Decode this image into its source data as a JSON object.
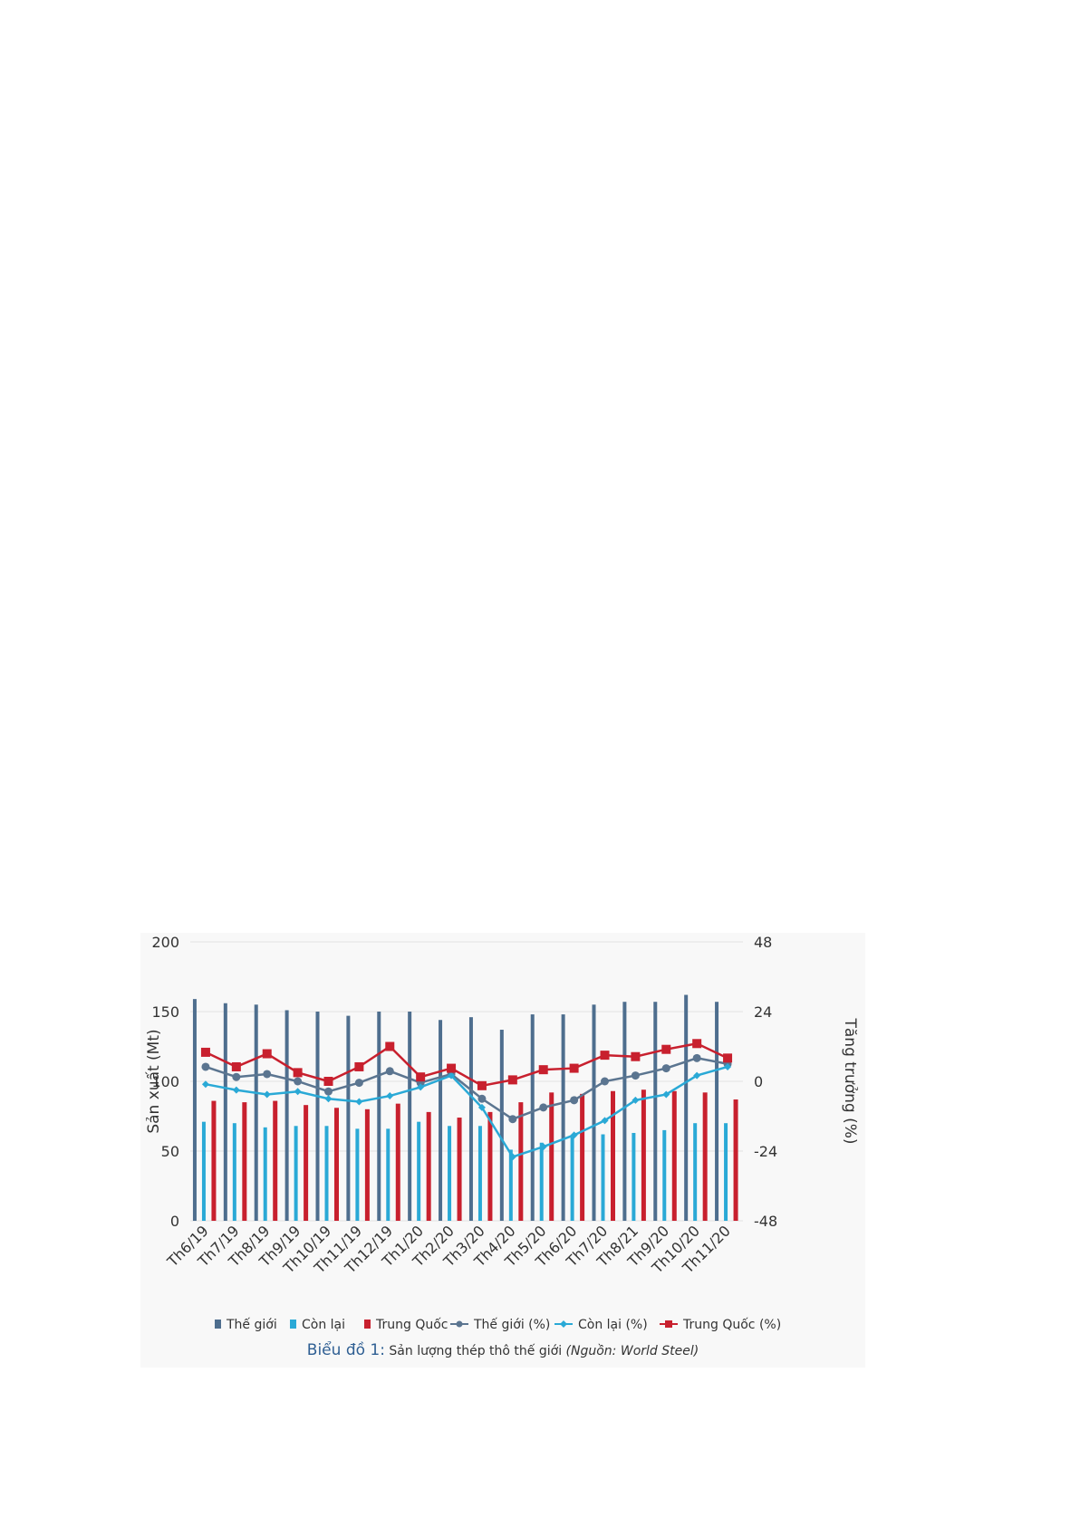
{
  "chart_data": {
    "type": "bar",
    "categories": [
      "Th6/19",
      "Th7/19",
      "Th8/19",
      "Th9/19",
      "Th10/19",
      "Th11/19",
      "Th12/19",
      "Th1/20",
      "Th2/20",
      "Th3/20",
      "Th4/20",
      "Th5/20",
      "Th6/20",
      "Th7/20",
      "Th8/21",
      "Th9/20",
      "Th10/20",
      "Th11/20"
    ],
    "ylabel": "Sản xuất (Mt)",
    "y2label": "Tăng trưởng (%)",
    "ylim": [
      0,
      200
    ],
    "y2lim": [
      -48,
      48
    ],
    "yticks": [
      "0",
      "50",
      "100",
      "150",
      "200"
    ],
    "y2ticks": [
      "-48",
      "-24",
      "0",
      "24",
      "48"
    ],
    "grid": true,
    "legend_position": "bottom",
    "series": [
      {
        "name": "Thế giới",
        "kind": "bar",
        "axis": "left",
        "color": "#4e6e8e",
        "values": [
          159,
          156,
          155,
          151,
          150,
          147,
          150,
          150,
          144,
          146,
          137,
          148,
          148,
          155,
          157,
          157,
          162,
          157
        ]
      },
      {
        "name": "Còn lại",
        "kind": "bar",
        "axis": "left",
        "color": "#2aa9d6",
        "values": [
          71,
          70,
          67,
          68,
          68,
          66,
          66,
          71,
          68,
          68,
          51,
          56,
          60,
          62,
          63,
          65,
          70,
          70
        ]
      },
      {
        "name": "Trung Quốc",
        "kind": "bar",
        "axis": "left",
        "color": "#c8202e",
        "values": [
          86,
          85,
          86,
          83,
          81,
          80,
          84,
          78,
          74,
          78,
          85,
          92,
          91,
          93,
          94,
          93,
          92,
          87
        ]
      },
      {
        "name": "Thế giới (%)",
        "kind": "line",
        "axis": "right",
        "color": "#5b7590",
        "marker": "circle",
        "values": [
          5,
          1.5,
          2.5,
          0,
          -3.5,
          -0.5,
          3.5,
          -0.5,
          2.5,
          -6,
          -13,
          -9,
          -6.5,
          0,
          2,
          4.5,
          8,
          6
        ]
      },
      {
        "name": "Còn lại (%)",
        "kind": "line",
        "axis": "right",
        "color": "#2aa9d6",
        "marker": "diamond",
        "values": [
          -1,
          -3,
          -4.5,
          -3.5,
          -6,
          -7,
          -5,
          -2,
          2,
          -9,
          -26,
          -22.5,
          -18.5,
          -13.5,
          -6.5,
          -4.5,
          2,
          5
        ]
      },
      {
        "name": "Trung Quốc (%)",
        "kind": "line",
        "axis": "right",
        "color": "#c8202e",
        "marker": "square",
        "values": [
          10,
          5,
          9.5,
          3,
          0,
          5,
          12,
          1.5,
          4.5,
          -1.5,
          0.5,
          4,
          4.5,
          9,
          8.5,
          11,
          13,
          8
        ]
      }
    ]
  },
  "caption": {
    "label": "Biểu đồ 1:",
    "text": " Sản lượng thép thô thế giới ",
    "source": "(Nguồn: World Steel)"
  }
}
